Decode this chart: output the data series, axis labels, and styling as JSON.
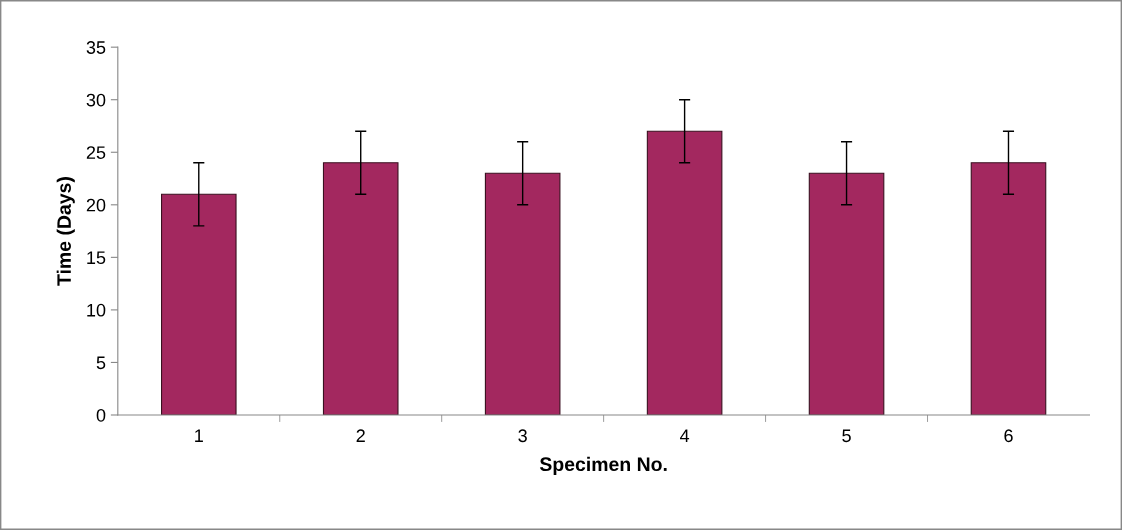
{
  "chart_data": {
    "type": "bar",
    "xlabel": "Specimen No.",
    "ylabel": "Time (Days)",
    "categories": [
      "1",
      "2",
      "3",
      "4",
      "5",
      "6"
    ],
    "values": [
      21,
      24,
      23,
      27,
      23,
      24
    ],
    "errors": [
      3,
      3,
      3,
      3,
      3,
      3
    ],
    "color": "#a3285f",
    "ylim": [
      0,
      35
    ],
    "yticks": [
      0,
      5,
      10,
      15,
      20,
      25,
      30,
      35
    ],
    "grid": false,
    "legend": false
  }
}
